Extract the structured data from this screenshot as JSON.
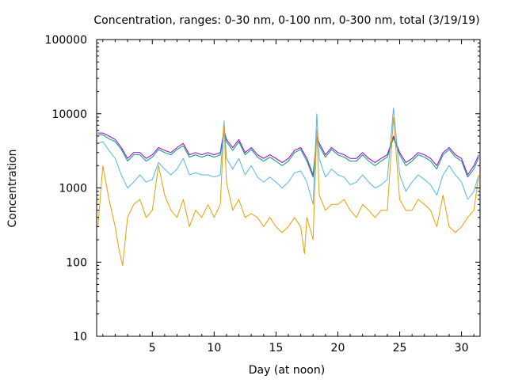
{
  "chart_data": {
    "type": "line",
    "title": "Concentration, ranges: 0-30 nm, 0-100 nm, 0-300 nm, total (3/19/19)",
    "xlabel": "Day (at noon)",
    "ylabel": "Concentration",
    "x_scale": "linear",
    "y_scale": "log",
    "xlim": [
      0.5,
      31.5
    ],
    "ylim": [
      10,
      100000
    ],
    "x_ticks": [
      "5",
      "10",
      "15",
      "20",
      "25",
      "30"
    ],
    "y_ticks": [
      "10",
      "100",
      "1000",
      "10000",
      "100000"
    ],
    "grid": false,
    "legend": "none",
    "series": [
      {
        "color": "#9400d3",
        "x": [
          0.6,
          1.0,
          1.5,
          2.0,
          2.5,
          3.0,
          3.5,
          4.0,
          4.5,
          5.0,
          5.5,
          6.0,
          6.5,
          7.0,
          7.5,
          8.0,
          8.5,
          9.0,
          9.5,
          10.0,
          10.5,
          10.8,
          11.0,
          11.5,
          12.0,
          12.5,
          13.0,
          13.5,
          14.0,
          14.5,
          15.0,
          15.5,
          16.0,
          16.5,
          17.0,
          17.5,
          18.0,
          18.3,
          18.5,
          19.0,
          19.5,
          20.0,
          20.5,
          21.0,
          21.5,
          22.0,
          22.5,
          23.0,
          23.5,
          24.0,
          24.5,
          25.0,
          25.5,
          26.0,
          26.5,
          27.0,
          27.5,
          28.0,
          28.5,
          29.0,
          29.5,
          30.0,
          30.5,
          31.0,
          31.4
        ],
        "values": [
          5500,
          5500,
          5000,
          4500,
          3500,
          2500,
          3000,
          3000,
          2500,
          2800,
          3500,
          3200,
          3000,
          3500,
          4000,
          2800,
          3000,
          2800,
          3000,
          2800,
          3000,
          6000,
          4500,
          3500,
          4500,
          3000,
          3500,
          2800,
          2500,
          2800,
          2500,
          2200,
          2500,
          3200,
          3500,
          2500,
          1500,
          5000,
          4000,
          2800,
          3500,
          3000,
          2800,
          2500,
          2500,
          3000,
          2500,
          2200,
          2500,
          2800,
          5000,
          3000,
          2200,
          2500,
          3000,
          2800,
          2500,
          2000,
          3000,
          3500,
          2800,
          2500,
          1500,
          2000,
          2800
        ]
      },
      {
        "color": "#009e73",
        "x": [
          0.6,
          1.0,
          1.5,
          2.0,
          2.5,
          3.0,
          3.5,
          4.0,
          4.5,
          5.0,
          5.5,
          6.0,
          6.5,
          7.0,
          7.5,
          8.0,
          8.5,
          9.0,
          9.5,
          10.0,
          10.5,
          10.8,
          11.0,
          11.5,
          12.0,
          12.5,
          13.0,
          13.5,
          14.0,
          14.5,
          15.0,
          15.5,
          16.0,
          16.5,
          17.0,
          17.5,
          18.0,
          18.3,
          18.5,
          19.0,
          19.5,
          20.0,
          20.5,
          21.0,
          21.5,
          22.0,
          22.5,
          23.0,
          23.5,
          24.0,
          24.5,
          25.0,
          25.5,
          26.0,
          26.5,
          27.0,
          27.5,
          28.0,
          28.5,
          29.0,
          29.5,
          30.0,
          30.5,
          31.0,
          31.4
        ],
        "values": [
          5200,
          5200,
          4600,
          4200,
          3300,
          2300,
          2800,
          2800,
          2300,
          2600,
          3300,
          3000,
          2800,
          3300,
          3700,
          2600,
          2800,
          2600,
          2800,
          2600,
          2800,
          5600,
          4200,
          3200,
          4200,
          2800,
          3300,
          2600,
          2300,
          2600,
          2300,
          2000,
          2300,
          3000,
          3300,
          2300,
          1400,
          4700,
          3700,
          2600,
          3300,
          2800,
          2600,
          2300,
          2300,
          2800,
          2300,
          2000,
          2300,
          2600,
          4700,
          2800,
          2000,
          2300,
          2800,
          2600,
          2300,
          1800,
          2800,
          3300,
          2600,
          2300,
          1400,
          1800,
          2600
        ]
      },
      {
        "color": "#56b4e9",
        "x": [
          0.6,
          1.0,
          1.5,
          2.0,
          2.5,
          3.0,
          3.5,
          4.0,
          4.5,
          5.0,
          5.5,
          6.0,
          6.5,
          7.0,
          7.5,
          8.0,
          8.5,
          9.0,
          9.5,
          10.0,
          10.5,
          10.8,
          11.0,
          11.5,
          12.0,
          12.5,
          13.0,
          13.5,
          14.0,
          14.5,
          15.0,
          15.5,
          16.0,
          16.5,
          17.0,
          17.5,
          18.0,
          18.3,
          18.5,
          19.0,
          19.5,
          20.0,
          20.5,
          21.0,
          21.5,
          22.0,
          22.5,
          23.0,
          23.5,
          24.0,
          24.5,
          25.0,
          25.5,
          26.0,
          26.5,
          27.0,
          27.5,
          28.0,
          28.5,
          29.0,
          29.5,
          30.0,
          30.5,
          31.0,
          31.4
        ],
        "values": [
          4000,
          4200,
          3200,
          2500,
          1500,
          1000,
          1200,
          1500,
          1200,
          1300,
          2200,
          1800,
          1500,
          1800,
          2500,
          1500,
          1600,
          1500,
          1500,
          1400,
          1500,
          8000,
          2500,
          1800,
          2500,
          1500,
          2000,
          1400,
          1200,
          1400,
          1200,
          1000,
          1200,
          1600,
          1700,
          1200,
          600,
          10000,
          2500,
          1400,
          1800,
          1500,
          1400,
          1100,
          1200,
          1500,
          1200,
          1000,
          1100,
          1300,
          12000,
          1500,
          900,
          1200,
          1500,
          1300,
          1100,
          800,
          1500,
          2000,
          1500,
          1200,
          700,
          900,
          1500
        ]
      },
      {
        "color": "#e69f00",
        "x": [
          0.6,
          1.0,
          1.5,
          2.0,
          2.3,
          2.6,
          3.0,
          3.5,
          4.0,
          4.5,
          5.0,
          5.5,
          6.0,
          6.5,
          7.0,
          7.5,
          8.0,
          8.5,
          9.0,
          9.5,
          10.0,
          10.5,
          10.8,
          11.0,
          11.5,
          12.0,
          12.5,
          13.0,
          13.5,
          14.0,
          14.5,
          15.0,
          15.5,
          16.0,
          16.5,
          17.0,
          17.3,
          17.5,
          18.0,
          18.3,
          18.5,
          19.0,
          19.5,
          20.0,
          20.5,
          21.0,
          21.5,
          22.0,
          22.5,
          23.0,
          23.5,
          24.0,
          24.5,
          25.0,
          25.5,
          26.0,
          26.5,
          27.0,
          27.5,
          28.0,
          28.5,
          29.0,
          29.5,
          30.0,
          30.5,
          31.0,
          31.4
        ],
        "values": [
          300,
          2000,
          700,
          300,
          150,
          90,
          400,
          600,
          700,
          400,
          500,
          2000,
          800,
          500,
          400,
          700,
          300,
          500,
          400,
          600,
          400,
          600,
          7000,
          1200,
          500,
          700,
          400,
          450,
          400,
          300,
          400,
          300,
          250,
          300,
          400,
          300,
          130,
          400,
          200,
          6000,
          800,
          500,
          600,
          600,
          700,
          500,
          400,
          600,
          500,
          400,
          500,
          500,
          9000,
          700,
          500,
          500,
          700,
          600,
          500,
          300,
          800,
          300,
          250,
          300,
          400,
          500,
          1500
        ]
      }
    ]
  }
}
